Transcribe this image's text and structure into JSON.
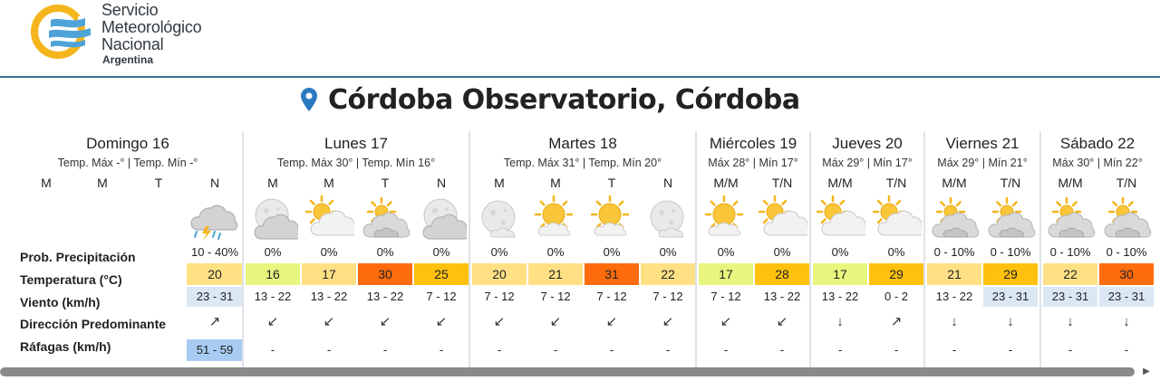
{
  "brand": {
    "line1": "Servicio",
    "line2": "Meteorológico",
    "line3": "Nacional",
    "line4": "Argentina"
  },
  "location": "Córdoba Observatorio, Córdoba",
  "row_labels": {
    "prob": "Prob. Precipitación",
    "temp": "Temperatura (°C)",
    "wind": "Viento (km/h)",
    "dir": "Dirección Predominante",
    "gust": "Ráfagas (km/h)"
  },
  "colors": {
    "yellow": "#ffe085",
    "lime": "#e8f57e",
    "amber": "#ffc10d",
    "orange": "#ff6c0e",
    "wind_light": "#dbe8f4",
    "gust_blue": "#a7cbf2",
    "accent": "#3a6f8f"
  },
  "days": [
    {
      "name": "Domingo 16",
      "sub": "Temp. Máx -° | Temp. Mín -°",
      "periods": [
        {
          "label": "M",
          "icon": "none",
          "prob": "",
          "temp": "",
          "temp_color": "",
          "wind": "",
          "wind_color": "",
          "dir": "",
          "gust": "",
          "gust_color": ""
        },
        {
          "label": "M",
          "icon": "none",
          "prob": "",
          "temp": "",
          "temp_color": "",
          "wind": "",
          "wind_color": "",
          "dir": "",
          "gust": "",
          "gust_color": ""
        },
        {
          "label": "T",
          "icon": "none",
          "prob": "",
          "temp": "",
          "temp_color": "",
          "wind": "",
          "wind_color": "",
          "dir": "",
          "gust": "",
          "gust_color": ""
        },
        {
          "label": "N",
          "icon": "storm-cloud-icon",
          "prob": "10 - 40%",
          "temp": "20",
          "temp_color": "yellow",
          "wind": "23 - 31",
          "wind_color": "wind_light",
          "dir": "↗",
          "gust": "51 - 59",
          "gust_color": "gust_blue"
        }
      ]
    },
    {
      "name": "Lunes 17",
      "sub": "Temp. Máx 30° | Temp. Mín 16°",
      "periods": [
        {
          "label": "M",
          "icon": "cloudy-night-icon",
          "prob": "0%",
          "temp": "16",
          "temp_color": "lime",
          "wind": "13 - 22",
          "wind_color": "",
          "dir": "↙",
          "gust": "-",
          "gust_color": ""
        },
        {
          "label": "M",
          "icon": "partly-sunny-icon",
          "prob": "0%",
          "temp": "17",
          "temp_color": "yellow",
          "wind": "13 - 22",
          "wind_color": "",
          "dir": "↙",
          "gust": "-",
          "gust_color": ""
        },
        {
          "label": "T",
          "icon": "cloudy-icon",
          "prob": "0%",
          "temp": "30",
          "temp_color": "orange",
          "wind": "13 - 22",
          "wind_color": "",
          "dir": "↙",
          "gust": "-",
          "gust_color": ""
        },
        {
          "label": "N",
          "icon": "cloudy-night-icon",
          "prob": "0%",
          "temp": "25",
          "temp_color": "amber",
          "wind": "7 - 12",
          "wind_color": "",
          "dir": "↙",
          "gust": "-",
          "gust_color": ""
        }
      ]
    },
    {
      "name": "Martes 18",
      "sub": "Temp. Máx 31° | Temp. Mín 20°",
      "periods": [
        {
          "label": "M",
          "icon": "clear-night-icon",
          "prob": "0%",
          "temp": "20",
          "temp_color": "yellow",
          "wind": "7 - 12",
          "wind_color": "",
          "dir": "↙",
          "gust": "-",
          "gust_color": ""
        },
        {
          "label": "M",
          "icon": "sunny-icon",
          "prob": "0%",
          "temp": "21",
          "temp_color": "yellow",
          "wind": "7 - 12",
          "wind_color": "",
          "dir": "↙",
          "gust": "-",
          "gust_color": ""
        },
        {
          "label": "T",
          "icon": "sunny-icon",
          "prob": "0%",
          "temp": "31",
          "temp_color": "orange",
          "wind": "7 - 12",
          "wind_color": "",
          "dir": "↙",
          "gust": "-",
          "gust_color": ""
        },
        {
          "label": "N",
          "icon": "clear-night-icon",
          "prob": "0%",
          "temp": "22",
          "temp_color": "yellow",
          "wind": "7 - 12",
          "wind_color": "",
          "dir": "↙",
          "gust": "-",
          "gust_color": ""
        }
      ]
    },
    {
      "name": "Miércoles 19",
      "sub": "Máx 28° | Mín 17°",
      "periods": [
        {
          "label": "M/M",
          "icon": "sunny-icon",
          "prob": "0%",
          "temp": "17",
          "temp_color": "lime",
          "wind": "7 - 12",
          "wind_color": "",
          "dir": "↙",
          "gust": "-",
          "gust_color": ""
        },
        {
          "label": "T/N",
          "icon": "partly-sunny-icon",
          "prob": "0%",
          "temp": "28",
          "temp_color": "amber",
          "wind": "13 - 22",
          "wind_color": "",
          "dir": "↙",
          "gust": "-",
          "gust_color": ""
        }
      ]
    },
    {
      "name": "Jueves 20",
      "sub": "Máx 29° | Mín 17°",
      "periods": [
        {
          "label": "M/M",
          "icon": "partly-sunny-icon",
          "prob": "0%",
          "temp": "17",
          "temp_color": "lime",
          "wind": "13 - 22",
          "wind_color": "",
          "dir": "↓",
          "gust": "-",
          "gust_color": ""
        },
        {
          "label": "T/N",
          "icon": "partly-sunny-icon",
          "prob": "0%",
          "temp": "29",
          "temp_color": "amber",
          "wind": "0 - 2",
          "wind_color": "",
          "dir": "↗",
          "gust": "-",
          "gust_color": ""
        }
      ]
    },
    {
      "name": "Viernes 21",
      "sub": "Máx 29° | Mín 21°",
      "periods": [
        {
          "label": "M/M",
          "icon": "cloudy-icon",
          "prob": "0 - 10%",
          "temp": "21",
          "temp_color": "yellow",
          "wind": "13 - 22",
          "wind_color": "",
          "dir": "↓",
          "gust": "-",
          "gust_color": ""
        },
        {
          "label": "T/N",
          "icon": "cloudy-icon",
          "prob": "0 - 10%",
          "temp": "29",
          "temp_color": "amber",
          "wind": "23 - 31",
          "wind_color": "wind_light",
          "dir": "↓",
          "gust": "-",
          "gust_color": ""
        }
      ]
    },
    {
      "name": "Sábado 22",
      "sub": "Máx 30° | Mín 22°",
      "periods": [
        {
          "label": "M/M",
          "icon": "cloudy-icon",
          "prob": "0 - 10%",
          "temp": "22",
          "temp_color": "yellow",
          "wind": "23 - 31",
          "wind_color": "wind_light",
          "dir": "↓",
          "gust": "-",
          "gust_color": ""
        },
        {
          "label": "T/N",
          "icon": "cloudy-icon",
          "prob": "0 - 10%",
          "temp": "30",
          "temp_color": "orange",
          "wind": "23 - 31",
          "wind_color": "wind_light",
          "dir": "↓",
          "gust": "-",
          "gust_color": ""
        }
      ]
    }
  ]
}
